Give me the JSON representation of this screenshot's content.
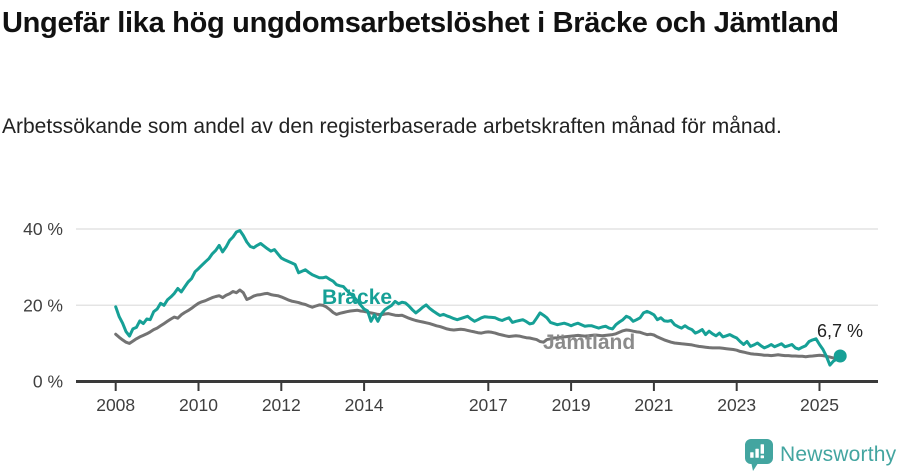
{
  "header": {
    "title": "Ungefär lika hög ungdomsarbetslöshet i Bräcke och Jämtland",
    "subtitle": "Arbetssökande som andel av den registerbaserade arbetskraften månad för månad."
  },
  "footer": {
    "brand": "Newsworthy",
    "logo_icon": "bar-chart-speech-bubble-icon",
    "brand_color": "#43a5a0"
  },
  "chart_data": {
    "type": "line",
    "title": "Ungefär lika hög ungdomsarbetslöshet i Bräcke och Jämtland",
    "subtitle": "Arbetssökande som andel av den registerbaserade arbetskraften månad för månad.",
    "unit": "%",
    "frequency": "monthly",
    "x_start": "2008-01",
    "x_end": "2025-07",
    "ylim": [
      0,
      44
    ],
    "grid": "horizontal",
    "axis_color": "#3a3a3a",
    "grid_color": "#e4e4e4",
    "yticks": [
      {
        "value": 0,
        "label": "0 %"
      },
      {
        "value": 20,
        "label": "20 %"
      },
      {
        "value": 40,
        "label": "40 %"
      }
    ],
    "xticks": [
      2008,
      2010,
      2012,
      2014,
      2017,
      2019,
      2021,
      2023,
      2025
    ],
    "series": [
      {
        "name": "Bräcke",
        "color": "#16a096",
        "label_color": "#16a096",
        "values": [
          19.6,
          17.0,
          15.3,
          13.1,
          11.9,
          13.8,
          14.2,
          15.9,
          15.2,
          16.4,
          16.2,
          18.3,
          19.0,
          20.5,
          20.0,
          21.4,
          22.2,
          23.1,
          24.4,
          23.5,
          24.8,
          26.1,
          27.0,
          28.8,
          29.6,
          30.5,
          31.4,
          32.2,
          33.5,
          34.4,
          35.7,
          34.0,
          35.3,
          37.0,
          37.9,
          39.2,
          39.6,
          38.3,
          36.6,
          35.4,
          35.1,
          35.7,
          36.2,
          35.5,
          34.8,
          34.2,
          34.6,
          33.5,
          32.4,
          31.9,
          31.5,
          31.1,
          30.7,
          28.5,
          28.9,
          29.3,
          28.6,
          28.0,
          27.6,
          27.2,
          27.2,
          27.4,
          26.8,
          26.3,
          25.4,
          25.1,
          24.9,
          23.9,
          23.0,
          22.2,
          21.2,
          20.1,
          19.0,
          18.5,
          15.8,
          17.5,
          15.8,
          17.7,
          18.8,
          19.4,
          20.0,
          21.0,
          20.4,
          20.8,
          20.6,
          19.8,
          18.8,
          18.0,
          18.7,
          19.5,
          20.1,
          19.2,
          18.5,
          17.9,
          17.3,
          17.6,
          17.2,
          16.9,
          16.5,
          16.2,
          16.5,
          16.8,
          17.1,
          16.4,
          15.8,
          16.2,
          16.7,
          17.0,
          16.9,
          16.8,
          16.7,
          16.3,
          16.0,
          16.4,
          16.7,
          15.5,
          15.8,
          16.0,
          16.2,
          15.7,
          15.1,
          15.3,
          16.6,
          18.0,
          17.4,
          16.7,
          15.5,
          15.2,
          14.9,
          15.1,
          15.3,
          15.0,
          14.6,
          15.0,
          15.3,
          14.9,
          14.5,
          14.6,
          14.6,
          14.3,
          14.0,
          14.3,
          14.5,
          14.0,
          13.8,
          14.9,
          15.6,
          16.2,
          17.1,
          16.7,
          15.8,
          16.2,
          16.7,
          18.0,
          18.4,
          18.0,
          17.5,
          16.2,
          16.7,
          15.9,
          15.8,
          16.0,
          14.9,
          14.4,
          14.0,
          14.6,
          14.0,
          13.6,
          12.7,
          13.1,
          13.6,
          12.3,
          13.2,
          12.5,
          12.0,
          12.7,
          11.7,
          12.0,
          12.3,
          11.8,
          11.4,
          10.5,
          9.7,
          10.5,
          9.2,
          9.6,
          10.1,
          9.4,
          8.8,
          9.2,
          9.7,
          9.1,
          9.5,
          9.9,
          9.1,
          9.4,
          9.7,
          8.8,
          8.5,
          9.0,
          9.4,
          10.5,
          10.9,
          11.2,
          9.7,
          8.4,
          6.6,
          4.3,
          5.3,
          5.9,
          6.7
        ]
      },
      {
        "name": "Jämtland",
        "color": "#737373",
        "label_color": "#8b8b8b",
        "values": [
          12.4,
          11.6,
          10.9,
          10.3,
          10.0,
          10.6,
          11.2,
          11.7,
          12.1,
          12.5,
          13.0,
          13.6,
          14.0,
          14.6,
          15.2,
          15.8,
          16.4,
          16.9,
          16.6,
          17.5,
          18.1,
          18.6,
          19.2,
          19.9,
          20.5,
          20.9,
          21.2,
          21.6,
          22.0,
          22.3,
          22.5,
          22.0,
          22.6,
          23.0,
          23.6,
          23.3,
          24.0,
          23.3,
          21.5,
          21.9,
          22.4,
          22.7,
          22.8,
          23.0,
          23.1,
          22.8,
          22.6,
          22.5,
          22.2,
          21.8,
          21.4,
          21.1,
          20.9,
          20.7,
          20.4,
          20.2,
          19.8,
          19.5,
          19.8,
          20.1,
          20.0,
          19.6,
          18.9,
          18.1,
          17.6,
          17.9,
          18.1,
          18.3,
          18.5,
          18.6,
          18.7,
          18.5,
          18.4,
          18.2,
          18.0,
          17.8,
          17.6,
          17.5,
          17.7,
          17.8,
          17.6,
          17.4,
          17.3,
          17.4,
          17.0,
          16.6,
          16.3,
          16.0,
          15.8,
          15.6,
          15.4,
          15.2,
          14.9,
          14.6,
          14.4,
          14.1,
          13.8,
          13.6,
          13.5,
          13.6,
          13.7,
          13.6,
          13.4,
          13.2,
          13.0,
          12.8,
          12.7,
          12.9,
          13.0,
          12.9,
          12.7,
          12.4,
          12.2,
          12.0,
          11.8,
          11.9,
          12.0,
          11.9,
          11.7,
          11.5,
          11.4,
          11.2,
          11.0,
          10.5,
          10.3,
          11.0,
          11.2,
          11.4,
          11.5,
          11.6,
          11.7,
          11.8,
          11.9,
          12.0,
          12.1,
          12.0,
          11.9,
          12.0,
          12.1,
          12.2,
          12.1,
          12.0,
          12.1,
          12.2,
          12.3,
          12.5,
          12.9,
          13.3,
          13.5,
          13.4,
          13.2,
          13.0,
          12.9,
          12.6,
          12.3,
          12.4,
          12.2,
          11.7,
          11.3,
          10.9,
          10.6,
          10.3,
          10.1,
          10.0,
          9.9,
          9.8,
          9.7,
          9.6,
          9.4,
          9.2,
          9.1,
          9.0,
          8.9,
          8.8,
          8.8,
          8.8,
          8.7,
          8.6,
          8.5,
          8.4,
          8.2,
          7.9,
          7.7,
          7.5,
          7.3,
          7.2,
          7.1,
          7.0,
          6.9,
          6.9,
          6.8,
          6.9,
          7.0,
          6.9,
          6.8,
          6.8,
          6.7,
          6.7,
          6.6,
          6.6,
          6.5,
          6.6,
          6.7,
          6.8,
          6.9,
          6.8,
          6.6,
          6.4,
          6.2,
          6.1,
          6.1
        ]
      }
    ],
    "end_annotation": {
      "series": "Bräcke",
      "label": "6,7 %",
      "value": 6.7,
      "date": "2025-07"
    }
  }
}
